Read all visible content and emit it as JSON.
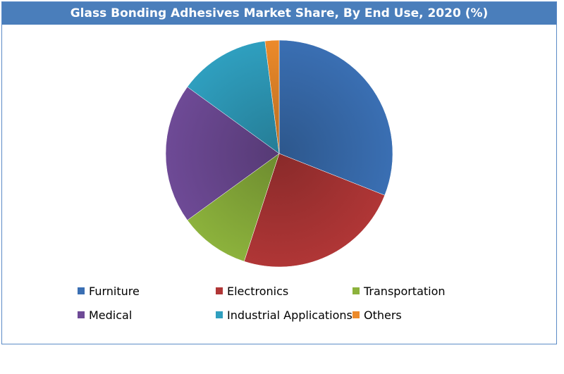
{
  "chart_data": {
    "type": "pie",
    "title": "Glass Bonding Adhesives Market Share, By End Use, 2020 (%)",
    "categories": [
      "Furniture",
      "Electronics",
      "Transportation",
      "Medical",
      "Industrial Applications",
      "Others"
    ],
    "values": [
      31,
      24,
      10,
      20,
      13,
      2
    ],
    "colors": [
      "#3a6fb3",
      "#b03636",
      "#8cb23c",
      "#6e4a96",
      "#2f9fbf",
      "#ec8a2a"
    ],
    "legend_position": "bottom"
  }
}
